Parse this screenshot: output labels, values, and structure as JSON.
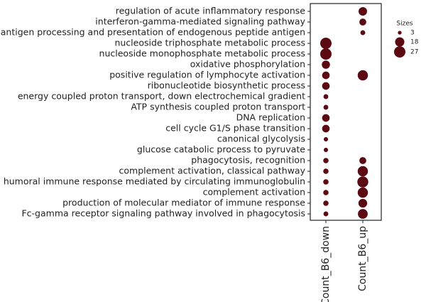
{
  "chart_data": {
    "type": "dotplot",
    "categories": [
      "regulation of acute inflammatory response",
      "interferon-gamma-mediated signaling pathway",
      "antigen processing and presentation of endogenous peptide antigen",
      "nucleoside triphosphate metabolic process",
      "nucleoside monophosphate metabolic process",
      "oxidative phosphorylation",
      "positive regulation of lymphocyte activation",
      "ribonucleotide biosynthetic process",
      "energy coupled proton transport, down electrochemical gradient",
      "ATP synthesis coupled proton transport",
      "DNA replication",
      "cell cycle G1/S phase transition",
      "canonical glycolysis",
      "glucose catabolic process to pyruvate",
      "phagocytosis, recognition",
      "complement activation, classical pathway",
      "humoral immune response mediated by circulating immunoglobulin",
      "complement activation",
      "production of molecular mediator of immune response",
      "Fc-gamma receptor signaling pathway involved in phagocytosis"
    ],
    "series": [
      {
        "name": "Count_B6_down",
        "values": [
          null,
          null,
          null,
          27,
          27,
          14,
          12,
          12,
          5,
          5,
          12,
          12,
          4,
          4,
          6,
          6,
          6,
          6,
          6,
          5
        ]
      },
      {
        "name": "Count_B6_up",
        "values": [
          15,
          10,
          5,
          null,
          null,
          null,
          22,
          null,
          null,
          null,
          null,
          null,
          null,
          null,
          10,
          22,
          25,
          22,
          16,
          20
        ]
      }
    ],
    "color": "#5c0a12",
    "size_legend": {
      "title": "Sizes",
      "values": [
        3,
        18,
        27
      ]
    }
  }
}
